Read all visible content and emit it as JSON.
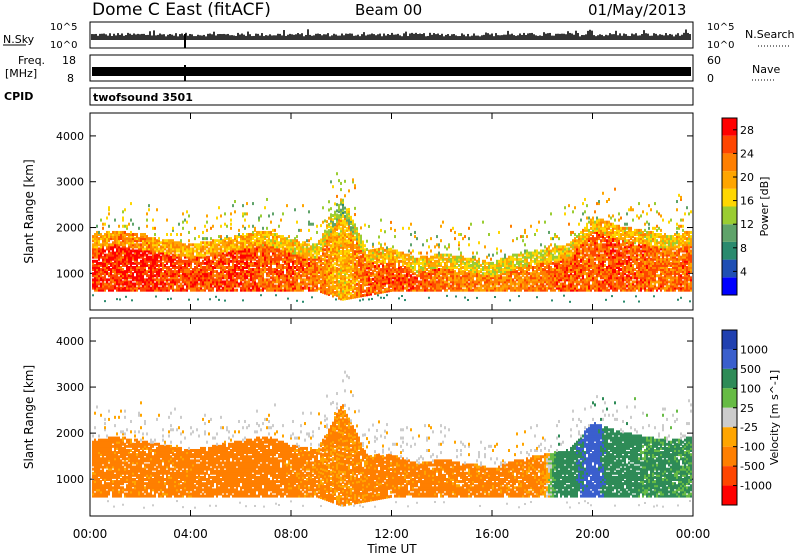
{
  "header": {
    "station": "Dome C East (fitACF)",
    "beam": "Beam 00",
    "date": "01/May/2013"
  },
  "top_panels": {
    "nsky_label": "N.Sky",
    "nsearch_label": "N.Search",
    "nsky_ticks": [
      "10^5",
      "10^0"
    ],
    "nsky_right_ticks": [
      "10^5",
      "10^0"
    ],
    "freq_label_1": "Freq.",
    "freq_label_2": "[MHz]",
    "freq_ticks": [
      "18",
      "8"
    ],
    "nave_label": "Nave",
    "nave_ticks": [
      "60",
      "0"
    ],
    "cpid_label": "CPID",
    "cpid_value": "twofsound 3501"
  },
  "chart_data": [
    {
      "type": "heatmap",
      "title": "",
      "ylabel": "Slant Range [km]",
      "xlabel": "",
      "x_ticks": [
        "00:00",
        "04:00",
        "08:00",
        "12:00",
        "16:00",
        "20:00",
        "00:00"
      ],
      "y_ticks": [
        1000,
        2000,
        3000,
        4000
      ],
      "ylim": [
        200,
        4500
      ],
      "xlim_hours": [
        0,
        24
      ],
      "colorbar": {
        "label": "Power [dB]",
        "ticks": [
          4,
          8,
          12,
          16,
          20,
          24,
          28
        ],
        "range": [
          0,
          30
        ],
        "colors": [
          "#0000ff",
          "#1f4fb4",
          "#2a8a6e",
          "#5fa36a",
          "#9acd32",
          "#ffd700",
          "#ffa500",
          "#ff7f00",
          "#ff4500",
          "#ff0000"
        ]
      },
      "field": "power",
      "series": [
        {
          "hours": [
            0,
            1,
            2,
            3,
            4,
            5,
            6,
            7,
            8,
            9,
            10,
            11,
            12,
            13,
            14,
            15,
            16,
            17,
            18,
            19,
            20,
            21,
            22,
            23,
            24
          ],
          "band_low_km": [
            600,
            600,
            600,
            600,
            600,
            600,
            600,
            600,
            600,
            600,
            400,
            500,
            600,
            600,
            600,
            600,
            600,
            600,
            600,
            600,
            600,
            600,
            600,
            600,
            600
          ],
          "band_high_km": [
            1800,
            1900,
            1800,
            1700,
            1600,
            1700,
            1800,
            1900,
            1700,
            1600,
            2600,
            1500,
            1500,
            1300,
            1400,
            1300,
            1200,
            1400,
            1500,
            1600,
            2200,
            2000,
            1900,
            1800,
            1900
          ],
          "power_db": [
            26,
            27,
            27,
            26,
            25,
            25,
            26,
            24,
            24,
            23,
            18,
            24,
            25,
            24,
            23,
            22,
            22,
            22,
            23,
            24,
            24,
            25,
            24,
            23,
            24
          ]
        }
      ]
    },
    {
      "type": "heatmap",
      "title": "",
      "ylabel": "Slant Range [km]",
      "xlabel": "Time UT",
      "x_ticks": [
        "00:00",
        "04:00",
        "08:00",
        "12:00",
        "16:00",
        "20:00",
        "00:00"
      ],
      "y_ticks": [
        1000,
        2000,
        3000,
        4000
      ],
      "ylim": [
        200,
        4500
      ],
      "xlim_hours": [
        0,
        24
      ],
      "colorbar": {
        "label": "Velocity [m s^-1]",
        "ticks": [
          1000,
          500,
          100,
          25,
          -25,
          -100,
          -500,
          -1000
        ],
        "colors": [
          "#2040b0",
          "#3a5fcd",
          "#2e8b57",
          "#66bb44",
          "#cccccc",
          "#ffa500",
          "#ff7f00",
          "#ff4500",
          "#ff0000"
        ]
      },
      "field": "velocity",
      "series": [
        {
          "hours": [
            0,
            2,
            4,
            6,
            8,
            10,
            12,
            14,
            16,
            18,
            19,
            20,
            21,
            22,
            23,
            24
          ],
          "velocity_ms": [
            -150,
            -150,
            -150,
            -200,
            -150,
            -120,
            -150,
            -150,
            -150,
            -120,
            400,
            600,
            300,
            120,
            150,
            100
          ]
        }
      ]
    }
  ]
}
